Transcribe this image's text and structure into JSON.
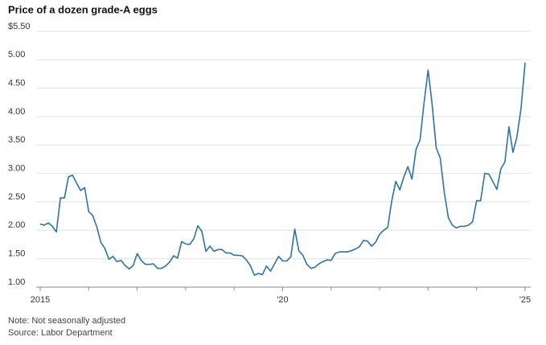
{
  "chart_data": {
    "type": "line",
    "title": "Price of a dozen grade-A eggs",
    "notes": [
      "Note: Not seasonally adjusted",
      "Source: Labor Department"
    ],
    "x": [
      2015,
      2015.083,
      2015.167,
      2015.25,
      2015.333,
      2015.417,
      2015.5,
      2015.583,
      2015.667,
      2015.75,
      2015.833,
      2015.917,
      2016,
      2016.083,
      2016.167,
      2016.25,
      2016.333,
      2016.417,
      2016.5,
      2016.583,
      2016.667,
      2016.75,
      2016.833,
      2016.917,
      2017,
      2017.083,
      2017.167,
      2017.25,
      2017.333,
      2017.417,
      2017.5,
      2017.583,
      2017.667,
      2017.75,
      2017.833,
      2017.917,
      2018,
      2018.083,
      2018.167,
      2018.25,
      2018.333,
      2018.417,
      2018.5,
      2018.583,
      2018.667,
      2018.75,
      2018.833,
      2018.917,
      2019,
      2019.083,
      2019.167,
      2019.25,
      2019.333,
      2019.417,
      2019.5,
      2019.583,
      2019.667,
      2019.75,
      2019.833,
      2019.917,
      2020,
      2020.083,
      2020.167,
      2020.25,
      2020.333,
      2020.417,
      2020.5,
      2020.583,
      2020.667,
      2020.75,
      2020.833,
      2020.917,
      2021,
      2021.083,
      2021.167,
      2021.25,
      2021.333,
      2021.417,
      2021.5,
      2021.583,
      2021.667,
      2021.75,
      2021.833,
      2021.917,
      2022,
      2022.083,
      2022.167,
      2022.25,
      2022.333,
      2022.417,
      2022.5,
      2022.583,
      2022.667,
      2022.75,
      2022.833,
      2022.917,
      2023,
      2023.083,
      2023.167,
      2023.25,
      2023.333,
      2023.417,
      2023.5,
      2023.583,
      2023.667,
      2023.75,
      2023.833,
      2023.917,
      2024,
      2024.083,
      2024.167,
      2024.25,
      2024.333,
      2024.417,
      2024.5,
      2024.583,
      2024.667,
      2024.75,
      2024.833,
      2024.917,
      2025
    ],
    "series": [
      {
        "color": "#2f73a3",
        "values": [
          2.11,
          2.09,
          2.13,
          2.07,
          1.97,
          2.57,
          2.57,
          2.94,
          2.97,
          2.83,
          2.7,
          2.75,
          2.33,
          2.26,
          2.06,
          1.79,
          1.68,
          1.49,
          1.54,
          1.45,
          1.47,
          1.38,
          1.32,
          1.38,
          1.59,
          1.47,
          1.4,
          1.4,
          1.41,
          1.33,
          1.33,
          1.37,
          1.44,
          1.55,
          1.51,
          1.8,
          1.76,
          1.75,
          1.85,
          2.08,
          1.98,
          1.63,
          1.72,
          1.63,
          1.66,
          1.66,
          1.6,
          1.6,
          1.56,
          1.56,
          1.55,
          1.48,
          1.38,
          1.21,
          1.24,
          1.22,
          1.37,
          1.28,
          1.41,
          1.54,
          1.46,
          1.46,
          1.53,
          2.02,
          1.64,
          1.56,
          1.4,
          1.33,
          1.35,
          1.41,
          1.45,
          1.48,
          1.47,
          1.59,
          1.62,
          1.62,
          1.62,
          1.64,
          1.67,
          1.71,
          1.82,
          1.81,
          1.72,
          1.79,
          1.93,
          2.0,
          2.05,
          2.52,
          2.86,
          2.71,
          2.94,
          3.12,
          2.9,
          3.42,
          3.59,
          4.25,
          4.82,
          4.21,
          3.45,
          3.27,
          2.67,
          2.22,
          2.09,
          2.04,
          2.07,
          2.07,
          2.09,
          2.15,
          2.52,
          2.52,
          3.0,
          2.99,
          2.86,
          2.72,
          3.08,
          3.2,
          3.82,
          3.37,
          3.65,
          4.15,
          4.95
        ]
      }
    ],
    "xlim": [
      2015,
      2025
    ],
    "xticks": [
      {
        "value": 2015,
        "label": "2015"
      },
      {
        "value": 2020,
        "label": "'20"
      },
      {
        "value": 2025,
        "label": "'25"
      }
    ],
    "xminor_ticks": [
      2016,
      2017,
      2018,
      2019,
      2021,
      2022,
      2023,
      2024
    ],
    "ylim": [
      1,
      5.5
    ],
    "yticks": [
      {
        "value": 1,
        "label": "1.00"
      },
      {
        "value": 1.5,
        "label": "1.50"
      },
      {
        "value": 2,
        "label": "2.00"
      },
      {
        "value": 2.5,
        "label": "2.50"
      },
      {
        "value": 3,
        "label": "3.00"
      },
      {
        "value": 3.5,
        "label": "3.50"
      },
      {
        "value": 4,
        "label": "4.00"
      },
      {
        "value": 4.5,
        "label": "4.50"
      },
      {
        "value": 5,
        "label": "5.00"
      },
      {
        "value": 5.5,
        "label": "$5.50"
      }
    ],
    "grid": true
  }
}
